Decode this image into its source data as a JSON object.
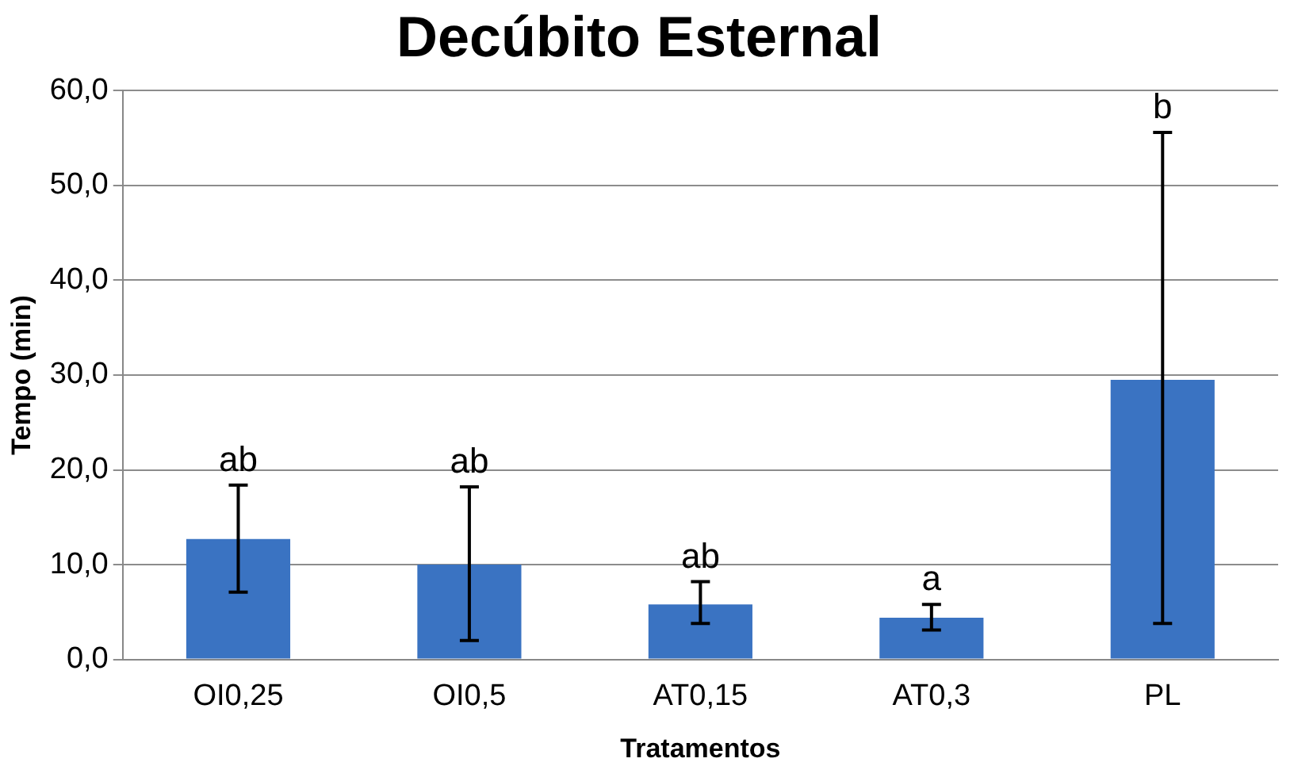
{
  "chart_data": {
    "type": "bar",
    "title": "Decúbito Esternal",
    "xlabel": "Tratamentos",
    "ylabel": "Tempo (min)",
    "categories": [
      "OI0,25",
      "OI0,5",
      "AT0,15",
      "AT0,3",
      "PL"
    ],
    "values": [
      12.7,
      10.0,
      5.8,
      4.4,
      29.5
    ],
    "errors": [
      [
        7.1,
        18.4
      ],
      [
        2.0,
        18.2
      ],
      [
        3.8,
        8.2
      ],
      [
        3.1,
        5.8
      ],
      [
        3.8,
        55.6
      ]
    ],
    "color": "#3a73c2",
    "ylim": [
      0,
      60
    ],
    "yticks": [
      {
        "value": 0,
        "label": "0,0"
      },
      {
        "value": 10,
        "label": "10,0"
      },
      {
        "value": 20,
        "label": "20,0"
      },
      {
        "value": 30,
        "label": "30,0"
      },
      {
        "value": 40,
        "label": "40,0"
      },
      {
        "value": 50,
        "label": "50,0"
      },
      {
        "value": 60,
        "label": "60,0"
      }
    ],
    "grid": "y",
    "annotations": [
      {
        "text": "ab",
        "x": "OI0,25",
        "y": 18.4
      },
      {
        "text": "ab",
        "x": "OI0,5",
        "y": 18.2
      },
      {
        "text": "ab",
        "x": "AT0,15",
        "y": 8.2
      },
      {
        "text": "a",
        "x": "AT0,3",
        "y": 5.8
      },
      {
        "text": "b",
        "x": "PL",
        "y": 55.6
      }
    ]
  }
}
